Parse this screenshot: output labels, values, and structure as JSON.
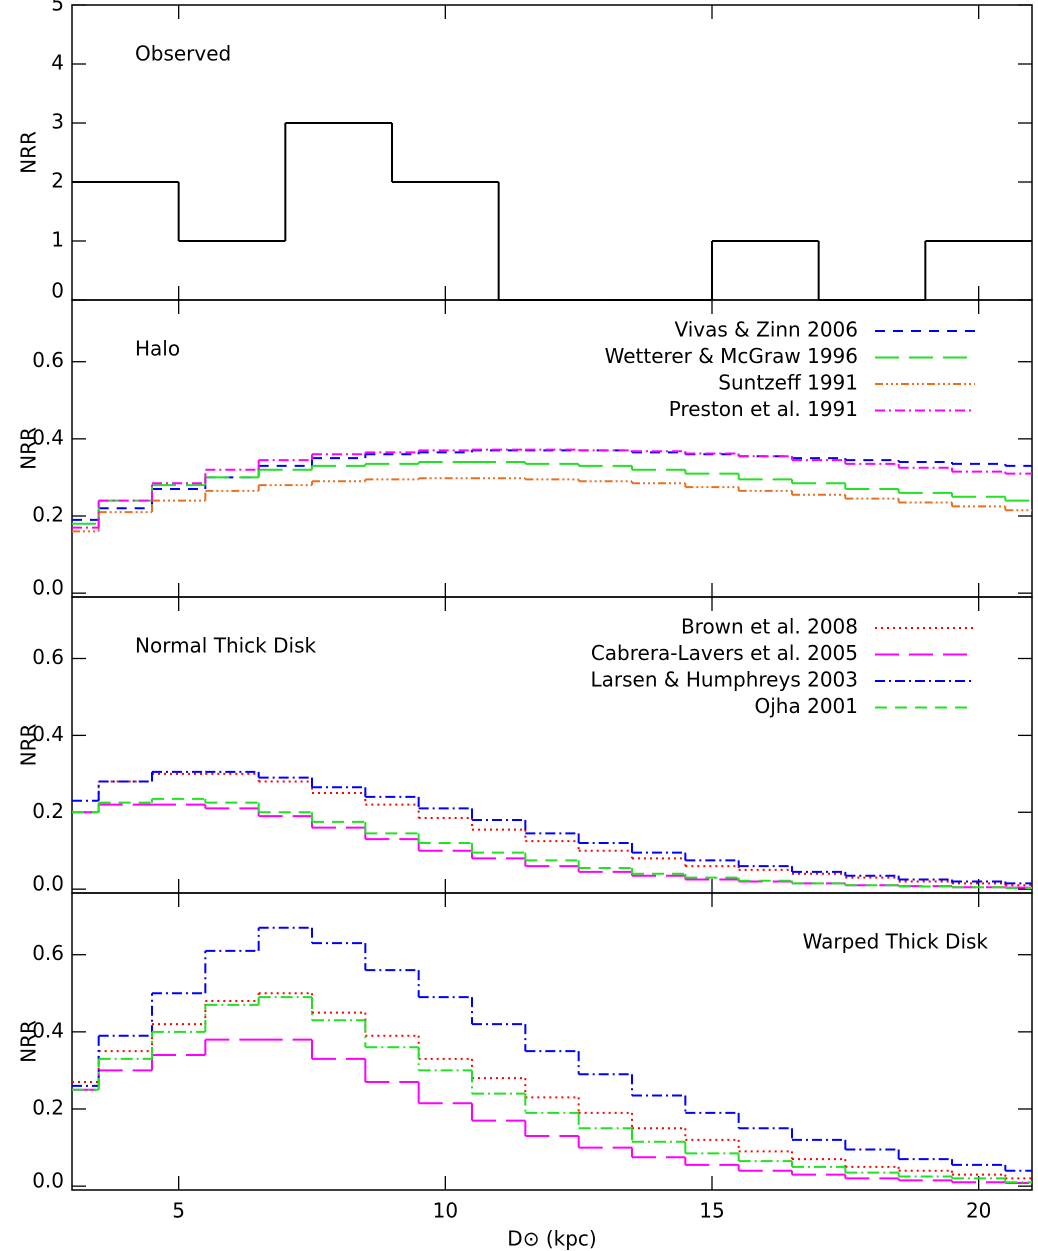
{
  "chart_data": [
    {
      "type": "histogram",
      "title": "Observed",
      "title_corner": "upper left",
      "ylabel": "NRR",
      "bins": [
        3,
        5,
        7,
        9,
        11,
        13,
        15,
        17,
        19,
        21
      ],
      "series": [
        {
          "color": "#000000",
          "dash": "none",
          "values": [
            2,
            1,
            3,
            2,
            0,
            0,
            1,
            0,
            1
          ]
        }
      ],
      "xlim": [
        3,
        21
      ],
      "xticks": [
        5,
        10,
        15,
        20
      ],
      "ylim": [
        0,
        5
      ],
      "yticks": [
        0,
        1,
        2,
        3,
        4,
        5
      ]
    },
    {
      "type": "histogram",
      "title": "Halo",
      "title_corner": "upper left",
      "ylabel": "NRR",
      "legend": true,
      "bins": [
        3,
        3.5,
        4.5,
        5.5,
        6.5,
        7.5,
        8.5,
        9.5,
        10.5,
        11.5,
        12.5,
        13.5,
        14.5,
        15.5,
        16.5,
        17.5,
        18.5,
        19.5,
        20.5,
        21
      ],
      "series": [
        {
          "name": "Vivas & Zinn 2006",
          "color": "#0000ff",
          "dash": "10,8",
          "values": [
            0.19,
            0.22,
            0.27,
            0.3,
            0.33,
            0.35,
            0.36,
            0.365,
            0.37,
            0.37,
            0.37,
            0.365,
            0.36,
            0.355,
            0.35,
            0.345,
            0.34,
            0.335,
            0.33
          ]
        },
        {
          "name": "Wetterer & McGraw 1996",
          "color": "#22e022",
          "dash": "24,10",
          "values": [
            0.18,
            0.24,
            0.28,
            0.3,
            0.32,
            0.33,
            0.335,
            0.34,
            0.34,
            0.335,
            0.33,
            0.32,
            0.31,
            0.295,
            0.285,
            0.27,
            0.26,
            0.25,
            0.24
          ]
        },
        {
          "name": "Suntzeff 1991",
          "color": "#e87020",
          "dash": "8,3,2,3,2,3,2,3",
          "values": [
            0.16,
            0.21,
            0.24,
            0.265,
            0.28,
            0.29,
            0.295,
            0.298,
            0.298,
            0.295,
            0.29,
            0.285,
            0.275,
            0.265,
            0.255,
            0.245,
            0.235,
            0.225,
            0.215
          ]
        },
        {
          "name": "Preston et al. 1991",
          "color": "#ff00ff",
          "dash": "10,4,2,4",
          "values": [
            0.17,
            0.24,
            0.285,
            0.32,
            0.345,
            0.36,
            0.365,
            0.37,
            0.372,
            0.372,
            0.37,
            0.368,
            0.362,
            0.355,
            0.345,
            0.335,
            0.325,
            0.315,
            0.31
          ]
        }
      ],
      "xlim": [
        3,
        21
      ],
      "xticks": [
        5,
        10,
        15,
        20
      ],
      "ylim": [
        -0.01,
        0.76
      ],
      "yticks": [
        {
          "value": 0,
          "label": "0.0"
        },
        0.2,
        0.4,
        0.6
      ]
    },
    {
      "type": "histogram",
      "title": "Normal Thick Disk",
      "title_corner": "upper left",
      "ylabel": "NRR",
      "legend": true,
      "bins": [
        3,
        3.5,
        4.5,
        5.5,
        6.5,
        7.5,
        8.5,
        9.5,
        10.5,
        11.5,
        12.5,
        13.5,
        14.5,
        15.5,
        16.5,
        17.5,
        18.5,
        19.5,
        20.5,
        21
      ],
      "series": [
        {
          "name": "Brown et al. 2008",
          "color": "#ff0000",
          "dash": "2,4",
          "values": [
            0.2,
            0.28,
            0.3,
            0.3,
            0.28,
            0.25,
            0.22,
            0.185,
            0.155,
            0.125,
            0.1,
            0.08,
            0.06,
            0.05,
            0.04,
            0.03,
            0.02,
            0.015,
            0.01
          ]
        },
        {
          "name": "Cabrera-Lavers et al. 2005",
          "color": "#ff00ff",
          "dash": "24,10",
          "values": [
            0.2,
            0.22,
            0.22,
            0.21,
            0.19,
            0.16,
            0.13,
            0.1,
            0.08,
            0.06,
            0.045,
            0.035,
            0.025,
            0.02,
            0.015,
            0.01,
            0.008,
            0.005,
            0.004
          ]
        },
        {
          "name": "Larsen & Humphreys 2003",
          "color": "#0000ff",
          "dash": "10,4,2,4",
          "values": [
            0.23,
            0.28,
            0.305,
            0.305,
            0.29,
            0.265,
            0.24,
            0.21,
            0.18,
            0.145,
            0.12,
            0.095,
            0.075,
            0.06,
            0.045,
            0.035,
            0.025,
            0.02,
            0.015
          ]
        },
        {
          "name": "Ojha 2001",
          "color": "#22e022",
          "dash": "12,8",
          "values": [
            0.2,
            0.225,
            0.235,
            0.225,
            0.2,
            0.175,
            0.145,
            0.12,
            0.095,
            0.075,
            0.055,
            0.04,
            0.03,
            0.022,
            0.015,
            0.01,
            0.007,
            0.005,
            0.003
          ]
        }
      ],
      "xlim": [
        3,
        21
      ],
      "xticks": [
        5,
        10,
        15,
        20
      ],
      "ylim": [
        -0.01,
        0.76
      ],
      "yticks": [
        {
          "value": 0,
          "label": "0.0"
        },
        0.2,
        0.4,
        0.6
      ]
    },
    {
      "type": "histogram",
      "title": "Warped Thick Disk",
      "title_corner": "upper right",
      "ylabel": "NRR",
      "xlabel": "D⊙ (kpc)",
      "bins": [
        3,
        3.5,
        4.5,
        5.5,
        6.5,
        7.5,
        8.5,
        9.5,
        10.5,
        11.5,
        12.5,
        13.5,
        14.5,
        15.5,
        16.5,
        17.5,
        18.5,
        19.5,
        20.5,
        21
      ],
      "series": [
        {
          "color": "#ff0000",
          "dash": "2,4",
          "values": [
            0.27,
            0.35,
            0.42,
            0.48,
            0.5,
            0.45,
            0.39,
            0.33,
            0.28,
            0.23,
            0.19,
            0.15,
            0.12,
            0.09,
            0.07,
            0.05,
            0.04,
            0.03,
            0.02
          ]
        },
        {
          "color": "#ff00ff",
          "dash": "24,10",
          "values": [
            0.25,
            0.3,
            0.34,
            0.38,
            0.38,
            0.33,
            0.27,
            0.215,
            0.17,
            0.13,
            0.1,
            0.075,
            0.055,
            0.04,
            0.03,
            0.02,
            0.015,
            0.01,
            0.008
          ]
        },
        {
          "color": "#0000ff",
          "dash": "10,4,2,4",
          "values": [
            0.26,
            0.39,
            0.5,
            0.61,
            0.67,
            0.63,
            0.56,
            0.49,
            0.42,
            0.35,
            0.29,
            0.235,
            0.19,
            0.15,
            0.12,
            0.095,
            0.07,
            0.055,
            0.04
          ]
        },
        {
          "color": "#22e022",
          "dash": "12,4,2,4",
          "values": [
            0.25,
            0.33,
            0.4,
            0.47,
            0.49,
            0.43,
            0.36,
            0.3,
            0.24,
            0.19,
            0.15,
            0.115,
            0.085,
            0.065,
            0.05,
            0.035,
            0.025,
            0.02,
            0.01
          ]
        }
      ],
      "xlim": [
        3,
        21
      ],
      "xticks": [
        5,
        10,
        15,
        20
      ],
      "xtick_labels": true,
      "ylim": [
        -0.01,
        0.76
      ],
      "yticks": [
        {
          "value": 0,
          "label": "0.0"
        },
        0.2,
        0.4,
        0.6
      ]
    }
  ]
}
